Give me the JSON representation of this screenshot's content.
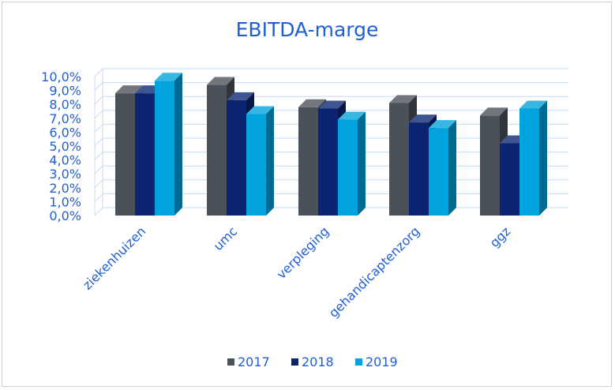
{
  "chart_data": {
    "type": "bar",
    "title": "EBITDA-marge",
    "categories": [
      "ziekenhuizen",
      "umc",
      "verpleging",
      "gehandicaptenzorg",
      "ggz"
    ],
    "series": [
      {
        "name": "2017",
        "values": [
          8.8,
          9.4,
          7.8,
          8.1,
          7.2
        ],
        "color": "#4a5158"
      },
      {
        "name": "2018",
        "values": [
          8.8,
          8.3,
          7.7,
          6.7,
          5.2
        ],
        "color": "#0a2472"
      },
      {
        "name": "2019",
        "values": [
          9.7,
          7.3,
          6.9,
          6.3,
          7.7
        ],
        "color": "#00a3de"
      }
    ],
    "y_ticks": [
      "0,0%",
      "1,0%",
      "2,0%",
      "3,0%",
      "4,0%",
      "5,0%",
      "6,0%",
      "7,0%",
      "8,0%",
      "9,0%",
      "10,0%"
    ],
    "ylim": [
      0,
      10
    ],
    "grid": true,
    "legend_position": "bottom",
    "text_color": "#1f5fd6",
    "gridline_color": "#c9d9f2",
    "style": "3d-clustered-column"
  }
}
